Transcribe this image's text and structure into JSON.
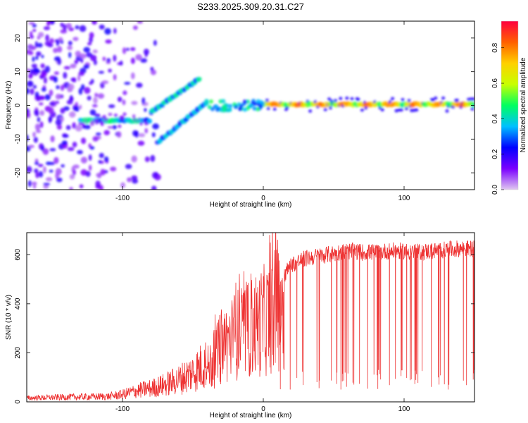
{
  "figure_title": "S233.2025.309.20.31.C27",
  "chart_data": [
    {
      "type": "heatmap",
      "title": "S233.2025.309.20.31.C27",
      "xlabel": "Height of straight line (km)",
      "ylabel": "Frequency (Hz)",
      "xlim": [
        -168,
        150
      ],
      "ylim": [
        -25,
        25
      ],
      "xticks": [
        -100,
        0,
        100
      ],
      "xtick_labels": [
        "-100",
        "0",
        "100"
      ],
      "yticks": [
        -20,
        -10,
        0,
        10,
        20
      ],
      "ytick_labels": [
        "-20",
        "-10",
        "0",
        "10",
        "20"
      ],
      "colorbar": {
        "label": "Normalized spectral amplitude",
        "range": [
          0,
          0.95
        ],
        "ticks": [
          0.0,
          0.2,
          0.4,
          0.6,
          0.8
        ],
        "tick_labels": [
          "0.0",
          "0.2",
          "0.4",
          "0.6",
          "0.8"
        ],
        "colormap": [
          "#e0c8f0",
          "#7a00ff",
          "#0000ff",
          "#00c0ff",
          "#00ff60",
          "#c8ff00",
          "#ffd000",
          "#ff6000",
          "#ff0040"
        ]
      },
      "features": [
        {
          "name": "main carrier line",
          "x_range": [
            0,
            150
          ],
          "frequency": 0.3,
          "amplitude": 0.8
        },
        {
          "name": "low-height branch",
          "x_range": [
            -130,
            -80
          ],
          "frequency": -4.5,
          "amplitude": 0.45
        },
        {
          "name": "upper oblique branch",
          "x_from": [
            -80,
            -2
          ],
          "x_to": [
            -45,
            8
          ],
          "amplitude": 0.45
        },
        {
          "name": "lower oblique branch",
          "x_from": [
            -75,
            -11
          ],
          "x_to": [
            -40,
            1
          ],
          "amplitude": 0.4
        },
        {
          "name": "noise region",
          "x_range": [
            -168,
            -85
          ],
          "frequency_range": [
            -25,
            25
          ],
          "amplitude": 0.15
        }
      ]
    },
    {
      "type": "line",
      "xlabel": "Height of straight line (km)",
      "ylabel": "SNR (10 * v/v)",
      "xlim": [
        -168,
        150
      ],
      "ylim": [
        0,
        690
      ],
      "xticks": [
        -100,
        0,
        100
      ],
      "xtick_labels": [
        "-100",
        "0",
        "100"
      ],
      "yticks": [
        0,
        200,
        400,
        600
      ],
      "ytick_labels": [
        "0",
        "200",
        "400",
        "600"
      ],
      "color": "#ee3333",
      "series": [
        {
          "name": "SNR",
          "x": [
            -168,
            -150,
            -130,
            -110,
            -100,
            -90,
            -80,
            -70,
            -60,
            -50,
            -45,
            -40,
            -35,
            -30,
            -25,
            -20,
            -15,
            -10,
            -5,
            0,
            5,
            10,
            15,
            20,
            30,
            40,
            50,
            60,
            70,
            80,
            90,
            100,
            110,
            120,
            130,
            140,
            150
          ],
          "values": [
            15,
            18,
            20,
            22,
            30,
            45,
            55,
            70,
            90,
            120,
            140,
            160,
            210,
            260,
            300,
            330,
            340,
            360,
            380,
            400,
            420,
            470,
            520,
            560,
            585,
            595,
            605,
            615,
            610,
            610,
            615,
            615,
            610,
            615,
            620,
            625,
            625
          ],
          "dropouts": {
            "x_range": [
              12,
              150
            ],
            "min_value": 50
          }
        }
      ]
    }
  ]
}
